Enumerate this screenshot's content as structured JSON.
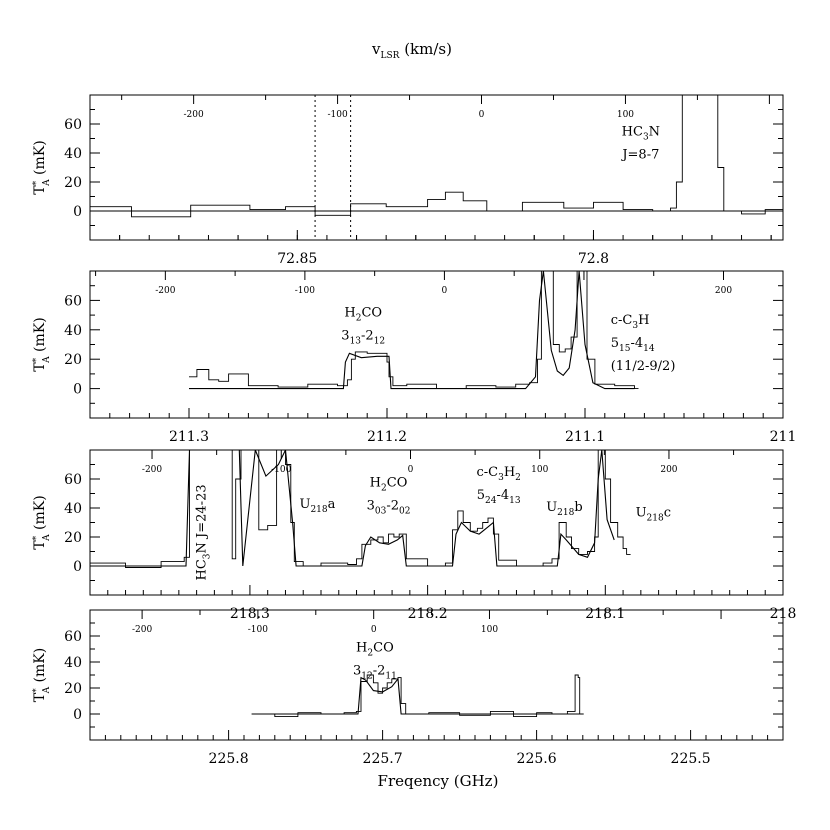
{
  "figure": {
    "top_label": "v_LSR (km/s)",
    "top_label_main": "v",
    "top_label_sub": "LSR",
    "top_label_rest": " (km/s)",
    "x_label": "Freqency (GHz)"
  },
  "chart_data": [
    {
      "type": "line",
      "panel": 1,
      "xlabel": "Freqency (GHz)",
      "ylabel": "T*A (mK)",
      "xlim": [
        72.885,
        72.768
      ],
      "ylim": [
        -20,
        80
      ],
      "x_ticks": [
        "72.85",
        "72.8"
      ],
      "x_tick_values": [
        72.85,
        72.8
      ],
      "y_ticks": [
        "0",
        "20",
        "40",
        "60"
      ],
      "y_tick_values": [
        0,
        20,
        40,
        60
      ],
      "v_ticks": [
        "-200",
        "-100",
        "0",
        "100"
      ],
      "v_tick_values": [
        -200,
        -100,
        0,
        100
      ],
      "v_at_f0": -272,
      "v_per_ghz": -4115,
      "vlines": [
        72.847,
        72.841
      ],
      "annotations": [
        {
          "lines": [
            "HC3N",
            "J=8-7"
          ],
          "x": 72.792,
          "y": 52
        }
      ],
      "series": [
        {
          "role": "observed spectrum",
          "x": [
            72.885,
            72.878,
            72.868,
            72.858,
            72.852,
            72.847,
            72.841,
            72.835,
            72.828,
            72.825,
            72.822,
            72.818,
            72.812,
            72.805,
            72.8,
            72.795,
            72.79,
            72.787,
            72.786,
            72.785,
            72.784,
            72.781,
            72.78,
            72.779,
            72.778,
            72.775,
            72.771,
            72.768
          ],
          "y": [
            3,
            -4,
            4,
            1,
            3,
            -3,
            5,
            3,
            8,
            13,
            7,
            0,
            6,
            2,
            6,
            1,
            0,
            2,
            20,
            80,
            80,
            80,
            80,
            30,
            0,
            -2,
            1,
            -2
          ]
        },
        {
          "role": "baseline",
          "x": [
            72.885,
            72.768
          ],
          "y": [
            0,
            0
          ]
        }
      ]
    },
    {
      "type": "line",
      "panel": 2,
      "xlabel": "Freqency (GHz)",
      "ylabel": "T*A (mK)",
      "xlim": [
        211.35,
        211.0
      ],
      "ylim": [
        -20,
        80
      ],
      "x_ticks": [
        "211.3",
        "211.2",
        "211.1",
        "211"
      ],
      "x_tick_values": [
        211.3,
        211.2,
        211.1,
        211.0
      ],
      "y_ticks": [
        "0",
        "20",
        "40",
        "60"
      ],
      "y_tick_values": [
        0,
        20,
        40,
        60
      ],
      "v_ticks": [
        "-200",
        "-100",
        "0",
        "200"
      ],
      "v_tick_values": [
        -200,
        -100,
        0,
        200
      ],
      "v_at_f0": -254,
      "v_per_ghz": -1419,
      "annotations": [
        {
          "lines": [
            "H2CO",
            "3_13-2_12"
          ],
          "x": 211.212,
          "y": 49
        },
        {
          "lines": [
            "c-C3H",
            "5_15-4_14",
            "(11/2-9/2)"
          ],
          "x": 211.087,
          "y": 44
        }
      ],
      "series": [
        {
          "role": "observed spectrum",
          "x": [
            211.3,
            211.296,
            211.29,
            211.285,
            211.28,
            211.27,
            211.255,
            211.24,
            211.225,
            211.22,
            211.218,
            211.216,
            211.21,
            211.205,
            211.2,
            211.199,
            211.197,
            211.19,
            211.175,
            211.16,
            211.145,
            211.135,
            211.128,
            211.124,
            211.122,
            211.119,
            211.116,
            211.113,
            211.11,
            211.107,
            211.104,
            211.101,
            211.099,
            211.095,
            211.085,
            211.075
          ],
          "y": [
            8,
            13,
            6,
            5,
            10,
            2,
            1,
            3,
            2,
            6,
            20,
            25,
            24,
            24,
            18,
            8,
            2,
            3,
            0,
            2,
            1,
            3,
            4,
            20,
            80,
            80,
            30,
            25,
            27,
            35,
            80,
            80,
            20,
            3,
            2,
            0
          ]
        },
        {
          "role": "fit",
          "x": [
            211.3,
            211.222,
            211.221,
            211.219,
            211.213,
            211.205,
            211.199,
            211.198,
            211.13,
            211.125,
            211.123,
            211.121,
            211.117,
            211.114,
            211.111,
            211.108,
            211.105,
            211.103,
            211.1,
            211.096,
            211.09,
            211.075
          ],
          "y": [
            0,
            0,
            18,
            24,
            21,
            22,
            22,
            0,
            0,
            8,
            60,
            80,
            26,
            12,
            9,
            14,
            40,
            80,
            30,
            4,
            0,
            0
          ]
        }
      ]
    },
    {
      "type": "line",
      "panel": 3,
      "xlabel": "Freqency (GHz)",
      "ylabel": "T*A (mK)",
      "xlim": [
        218.39,
        218.0
      ],
      "ylim": [
        -20,
        80
      ],
      "x_ticks": [
        "218.3",
        "218.2",
        "218.1",
        "218"
      ],
      "x_tick_values": [
        218.3,
        218.2,
        218.1,
        218.0
      ],
      "y_ticks": [
        "0",
        "20",
        "40",
        "60"
      ],
      "y_tick_values": [
        0,
        20,
        40,
        60
      ],
      "v_ticks": [
        "-200",
        "-100",
        "0",
        "100",
        "200"
      ],
      "v_tick_values": [
        -200,
        -100,
        0,
        100,
        200
      ],
      "v_at_f0": -248,
      "v_per_ghz": -1375,
      "annotations": [
        {
          "lines": [
            "HC3N J=24-23"
          ],
          "x": 218.325,
          "y": -10,
          "rotated": true
        },
        {
          "lines": [
            "U218a"
          ],
          "x": 218.262,
          "y": 40
        },
        {
          "lines": [
            "H2CO",
            "3_03-2_02"
          ],
          "x": 218.222,
          "y": 55
        },
        {
          "lines": [
            "c-C3H2",
            "5_24-4_13"
          ],
          "x": 218.16,
          "y": 62
        },
        {
          "lines": [
            "U218b"
          ],
          "x": 218.123,
          "y": 38
        },
        {
          "lines": [
            "U218c"
          ],
          "x": 218.073,
          "y": 34
        }
      ],
      "series": [
        {
          "role": "observed spectrum",
          "x": [
            218.39,
            218.37,
            218.35,
            218.337,
            218.334,
            218.332,
            218.31,
            218.308,
            218.305,
            218.3,
            218.295,
            218.29,
            218.285,
            218.282,
            218.28,
            218.277,
            218.275,
            218.27,
            218.26,
            218.245,
            218.24,
            218.237,
            218.232,
            218.228,
            218.225,
            218.222,
            218.219,
            218.216,
            218.212,
            218.2,
            218.19,
            218.186,
            218.183,
            218.18,
            218.176,
            218.172,
            218.169,
            218.166,
            218.163,
            218.16,
            218.15,
            218.135,
            218.13,
            218.126,
            218.122,
            218.119,
            218.115,
            218.11,
            218.106,
            218.104,
            218.103,
            218.1,
            218.097,
            218.093,
            218.09,
            218.088
          ],
          "y": [
            2,
            -1,
            3,
            6,
            80,
            80,
            5,
            60,
            80,
            80,
            25,
            28,
            80,
            80,
            70,
            30,
            3,
            0,
            2,
            1,
            5,
            15,
            18,
            20,
            16,
            22,
            20,
            22,
            5,
            0,
            2,
            25,
            38,
            30,
            24,
            26,
            30,
            33,
            22,
            4,
            0,
            2,
            5,
            30,
            20,
            12,
            8,
            10,
            20,
            80,
            80,
            60,
            30,
            20,
            12,
            8
          ]
        },
        {
          "role": "fit",
          "x": [
            218.39,
            218.336,
            218.334,
            218.306,
            218.304,
            218.297,
            218.291,
            218.284,
            218.28,
            218.276,
            218.274,
            218.237,
            218.235,
            218.232,
            218.227,
            218.222,
            218.217,
            218.214,
            218.212,
            218.186,
            218.184,
            218.181,
            218.176,
            218.171,
            218.166,
            218.163,
            218.161,
            218.127,
            218.125,
            218.122,
            218.115,
            218.11,
            218.106,
            218.104,
            218.102,
            218.099,
            218.095
          ],
          "y": [
            0,
            0,
            80,
            80,
            0,
            80,
            62,
            70,
            80,
            30,
            0,
            0,
            14,
            20,
            16,
            15,
            18,
            21,
            0,
            0,
            22,
            30,
            24,
            22,
            27,
            30,
            0,
            0,
            22,
            18,
            8,
            6,
            16,
            60,
            80,
            32,
            18
          ]
        }
      ]
    },
    {
      "type": "line",
      "panel": 4,
      "xlabel": "Freqency (GHz)",
      "ylabel": "T*A (mK)",
      "xlim": [
        225.89,
        225.44
      ],
      "ylim": [
        -20,
        80
      ],
      "x_ticks": [
        "225.8",
        "225.7",
        "225.6",
        "225.5"
      ],
      "x_tick_values": [
        225.8,
        225.7,
        225.6,
        225.5
      ],
      "y_ticks": [
        "0",
        "20",
        "40",
        "60"
      ],
      "y_tick_values": [
        0,
        20,
        40,
        60
      ],
      "v_ticks": [
        "-200",
        "-100",
        "0",
        "100"
      ],
      "v_tick_values": [
        -200,
        -100,
        0,
        100
      ],
      "v_at_f0": -245,
      "v_per_ghz": -1330,
      "annotations": [
        {
          "lines": [
            "H2CO",
            "3_12-2_11"
          ],
          "x": 225.705,
          "y": 48
        }
      ],
      "series": [
        {
          "role": "observed spectrum",
          "x": [
            225.785,
            225.77,
            225.755,
            225.74,
            225.725,
            225.717,
            225.714,
            225.71,
            225.706,
            225.703,
            225.7,
            225.697,
            225.694,
            225.69,
            225.688,
            225.685,
            225.67,
            225.65,
            225.63,
            225.615,
            225.6,
            225.59,
            225.58,
            225.577,
            225.575,
            225.573,
            225.572
          ],
          "y": [
            0,
            -2,
            1,
            0,
            1,
            2,
            25,
            30,
            24,
            16,
            20,
            24,
            27,
            28,
            8,
            0,
            1,
            -1,
            2,
            -2,
            1,
            0,
            2,
            2,
            30,
            28,
            0
          ]
        },
        {
          "role": "fit",
          "x": [
            225.785,
            225.716,
            225.714,
            225.711,
            225.706,
            225.7,
            225.694,
            225.69,
            225.688,
            225.572
          ],
          "y": [
            0,
            0,
            28,
            26,
            18,
            17,
            21,
            27,
            0,
            0
          ]
        }
      ]
    }
  ]
}
